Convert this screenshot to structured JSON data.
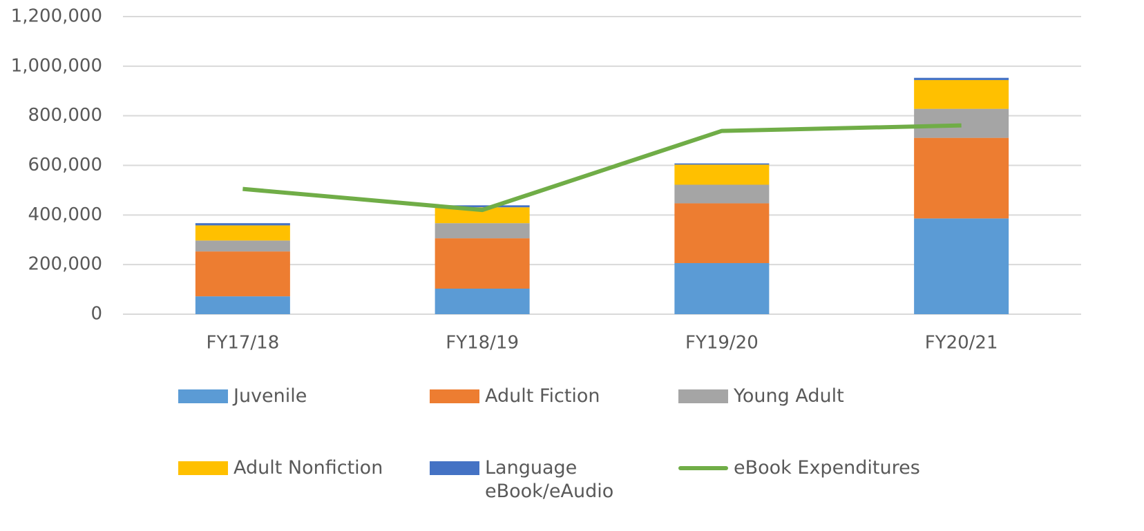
{
  "chart_data": {
    "type": "bar",
    "stacked": true,
    "categories": [
      "FY17/18",
      "FY18/19",
      "FY19/20",
      "FY20/21"
    ],
    "series": [
      {
        "name": "Juvenile",
        "color": "#5b9bd5",
        "values": [
          72000,
          103000,
          206000,
          386000
        ]
      },
      {
        "name": "Adult Fiction",
        "color": "#ed7d31",
        "values": [
          181000,
          203000,
          241000,
          325000
        ]
      },
      {
        "name": "Young Adult",
        "color": "#a5a5a5",
        "values": [
          44000,
          61000,
          75000,
          117000
        ]
      },
      {
        "name": "Adult Nonfiction",
        "color": "#ffc000",
        "values": [
          61000,
          64000,
          81000,
          116000
        ]
      },
      {
        "name": "Language eBook/eAudio",
        "color": "#4472c4",
        "values": [
          9000,
          8000,
          5000,
          9000
        ]
      },
      {
        "name": "eBook Expenditures",
        "color": "#70ad47",
        "type": "line",
        "values": [
          505000,
          420000,
          739000,
          761000
        ]
      }
    ],
    "ylim": [
      0,
      1200000
    ],
    "yticks": [
      0,
      {
        "value": 200000,
        "label": "200,000"
      },
      {
        "value": 400000,
        "label": "400,000"
      },
      {
        "value": 600000,
        "label": "600,000"
      },
      {
        "value": 800000,
        "label": "800,000"
      },
      {
        "value": 1000000,
        "label": "1,000,000"
      },
      {
        "value": 1200000,
        "label": "1,200,000"
      }
    ],
    "grid": true,
    "legend": "bottom"
  }
}
